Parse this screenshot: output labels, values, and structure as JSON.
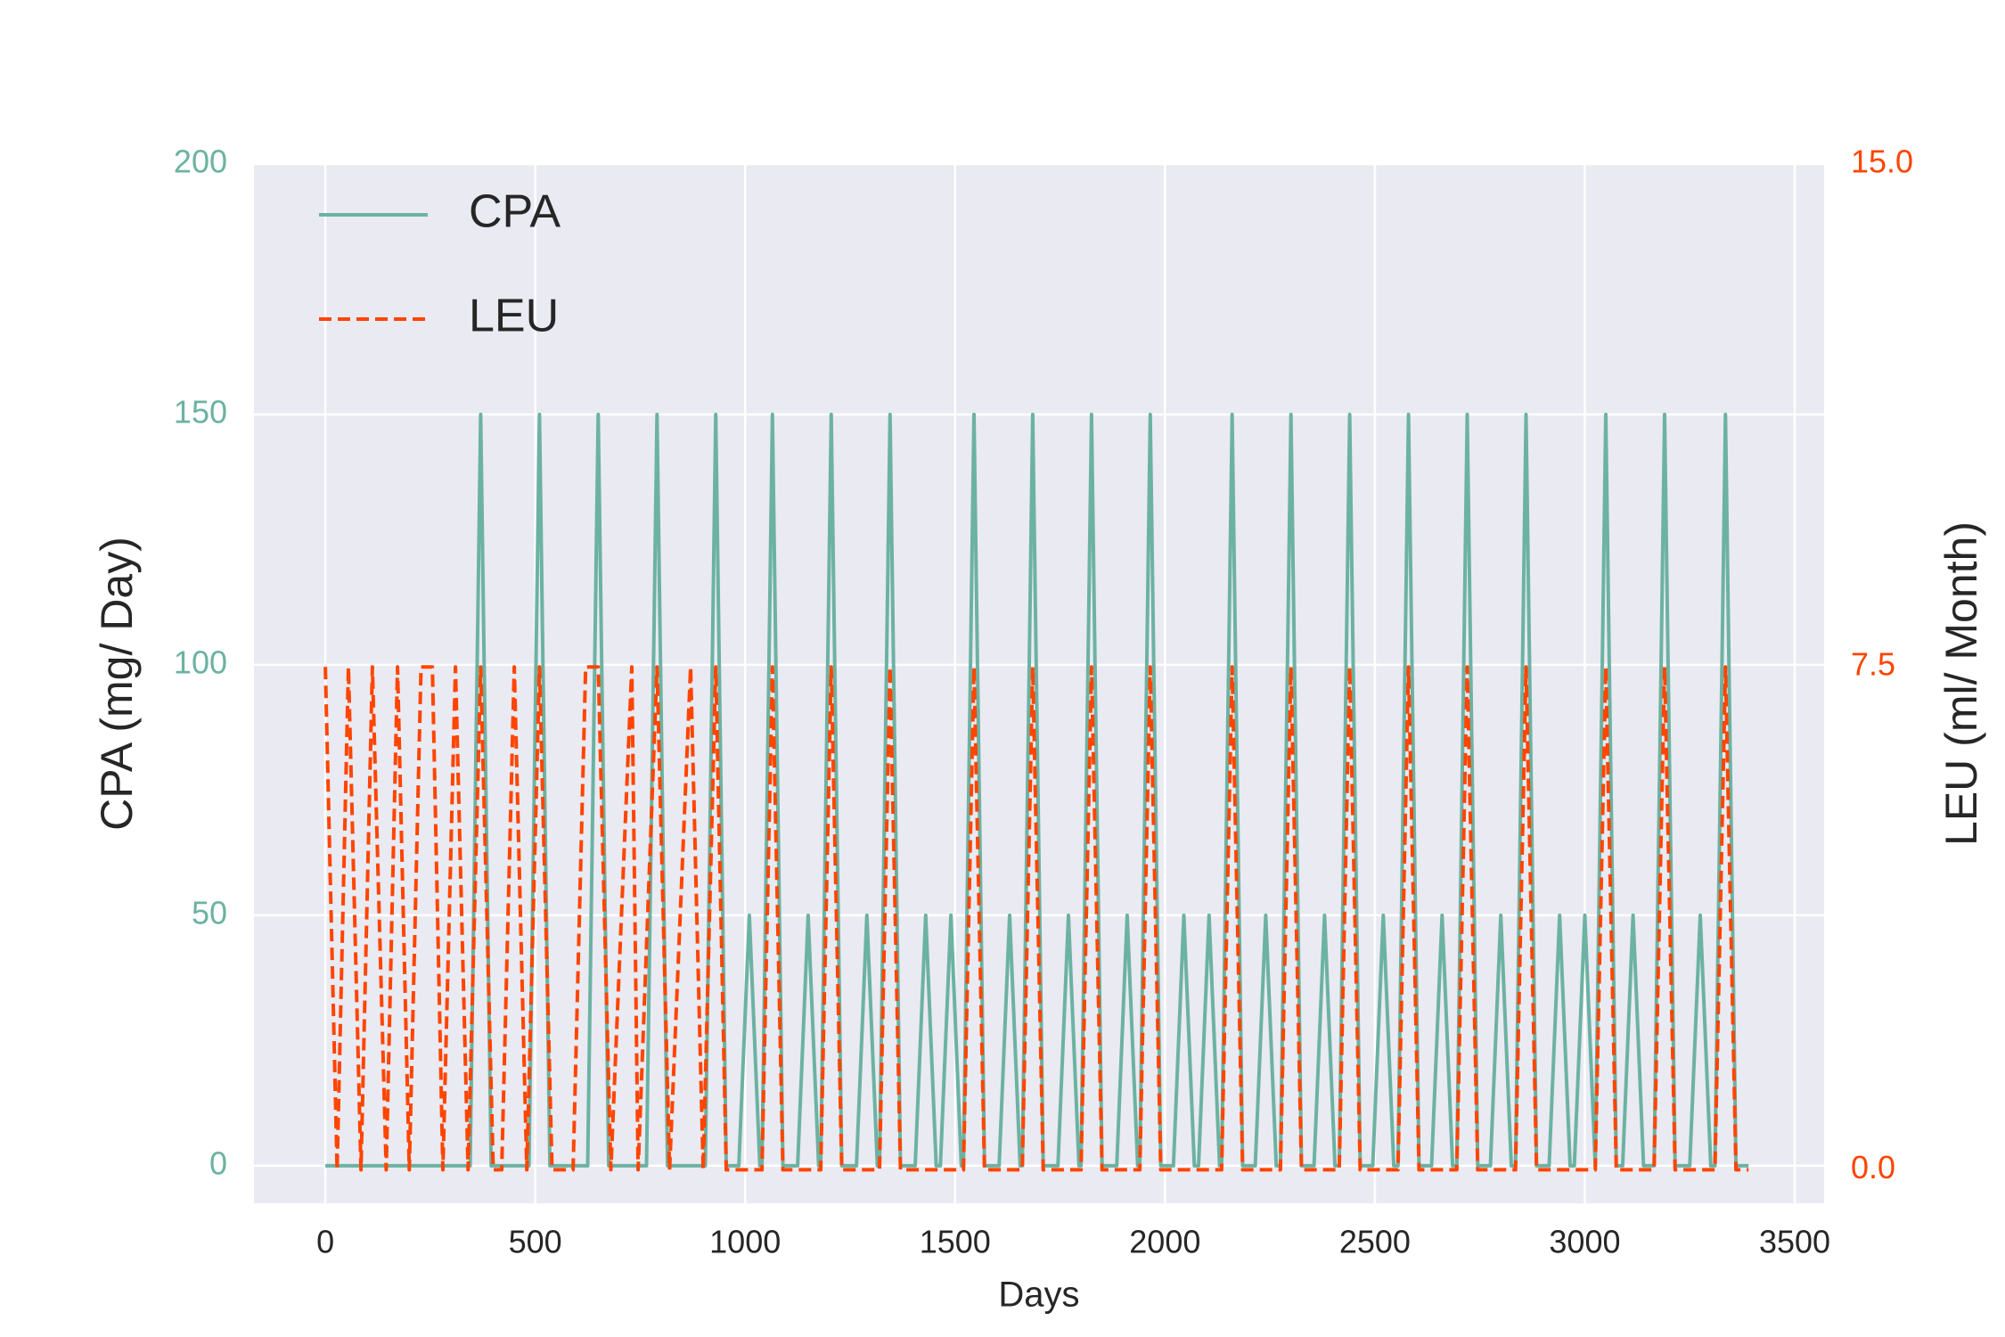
{
  "chart_data": {
    "type": "line",
    "xlabel": "Days",
    "ylabel": "CPA (mg/ Day)",
    "y2label": "LEU (ml/ Month)",
    "xlim": [
      -170,
      3570
    ],
    "xticks": [
      0,
      500,
      1000,
      1500,
      2000,
      2500,
      3000,
      3500
    ],
    "ylim": [
      -7.5,
      200
    ],
    "yticks": [
      0,
      50,
      100,
      150,
      200
    ],
    "y2lim": [
      -0.5,
      15
    ],
    "y2ticks": [
      {
        "value": 0,
        "label": "0.0"
      },
      {
        "value": 7.5,
        "label": "7.5"
      },
      {
        "value": 15,
        "label": "15.0"
      }
    ],
    "grid": true,
    "legend": "upper left",
    "series": [
      {
        "name": "CPA",
        "color": "#6cb2a2",
        "dash": "solid",
        "x": [
          0,
          345,
          370,
          395,
          485,
          510,
          535,
          625,
          650,
          675,
          765,
          790,
          815,
          905,
          930,
          955,
          985,
          1010,
          1035,
          1040,
          1065,
          1090,
          1125,
          1150,
          1175,
          1180,
          1205,
          1230,
          1265,
          1290,
          1315,
          1320,
          1345,
          1370,
          1405,
          1430,
          1455,
          1465,
          1490,
          1515,
          1520,
          1545,
          1570,
          1605,
          1630,
          1655,
          1660,
          1685,
          1710,
          1745,
          1770,
          1795,
          1800,
          1825,
          1850,
          1885,
          1910,
          1935,
          1940,
          1965,
          1990,
          2020,
          2045,
          2070,
          2080,
          2105,
          2130,
          2135,
          2160,
          2185,
          2215,
          2240,
          2265,
          2275,
          2300,
          2325,
          2355,
          2380,
          2405,
          2415,
          2440,
          2465,
          2495,
          2520,
          2545,
          2555,
          2580,
          2605,
          2635,
          2660,
          2685,
          2695,
          2720,
          2745,
          2775,
          2800,
          2825,
          2835,
          2860,
          2885,
          2915,
          2940,
          2965,
          2975,
          3000,
          3025,
          3025,
          3050,
          3075,
          3090,
          3115,
          3140,
          3165,
          3190,
          3215,
          3250,
          3275,
          3300,
          3310,
          3335,
          3360,
          3390
        ],
        "values": [
          0,
          0,
          150,
          0,
          0,
          150,
          0,
          0,
          150,
          0,
          0,
          150,
          0,
          0,
          150,
          0,
          0,
          50,
          0,
          0,
          150,
          0,
          0,
          50,
          0,
          0,
          150,
          0,
          0,
          50,
          0,
          0,
          150,
          0,
          0,
          50,
          0,
          0,
          50,
          0,
          0,
          150,
          0,
          0,
          50,
          0,
          0,
          150,
          0,
          0,
          50,
          0,
          0,
          150,
          0,
          0,
          50,
          0,
          0,
          150,
          0,
          0,
          50,
          0,
          0,
          50,
          0,
          0,
          150,
          0,
          0,
          50,
          0,
          0,
          150,
          0,
          0,
          50,
          0,
          0,
          150,
          0,
          0,
          50,
          0,
          0,
          150,
          0,
          0,
          50,
          0,
          0,
          150,
          0,
          0,
          50,
          0,
          0,
          150,
          0,
          0,
          50,
          0,
          0,
          50,
          0,
          0,
          150,
          0,
          0,
          50,
          0,
          0,
          150,
          0,
          0,
          50,
          0,
          0,
          150,
          0,
          0
        ]
      },
      {
        "name": "LEU",
        "color": "#ff4500",
        "dash": "dashed",
        "axis": "y2",
        "x": [
          0,
          28,
          55,
          85,
          112,
          145,
          172,
          200,
          228,
          255,
          280,
          310,
          340,
          370,
          400,
          420,
          450,
          480,
          510,
          540,
          590,
          620,
          650,
          680,
          730,
          745,
          790,
          820,
          870,
          900,
          930,
          955,
          1040,
          1065,
          1090,
          1180,
          1205,
          1230,
          1320,
          1345,
          1370,
          1520,
          1545,
          1570,
          1660,
          1685,
          1710,
          1800,
          1825,
          1850,
          1940,
          1965,
          1990,
          2135,
          2160,
          2185,
          2275,
          2300,
          2325,
          2415,
          2440,
          2465,
          2555,
          2580,
          2605,
          2695,
          2720,
          2745,
          2835,
          2860,
          2885,
          3025,
          3050,
          3075,
          3165,
          3190,
          3215,
          3310,
          3335,
          3360,
          3390
        ],
        "values": [
          7.5,
          0,
          7.5,
          0,
          7.5,
          0,
          7.5,
          0,
          7.5,
          7.5,
          0,
          7.5,
          0,
          7.5,
          0,
          0,
          7.5,
          0,
          7.5,
          0,
          0,
          7.5,
          7.5,
          0,
          7.5,
          0,
          7.5,
          0,
          7.5,
          0,
          7.5,
          0,
          0,
          7.5,
          0,
          0,
          7.5,
          0,
          0,
          7.5,
          0,
          0,
          7.5,
          0,
          0,
          7.5,
          0,
          0,
          7.5,
          0,
          0,
          7.5,
          0,
          0,
          7.5,
          0,
          0,
          7.5,
          0,
          0,
          7.5,
          0,
          0,
          7.5,
          0,
          0,
          7.5,
          0,
          0,
          7.5,
          0,
          0,
          7.5,
          0,
          0,
          7.5,
          0,
          0,
          7.5,
          0,
          0
        ]
      }
    ]
  }
}
